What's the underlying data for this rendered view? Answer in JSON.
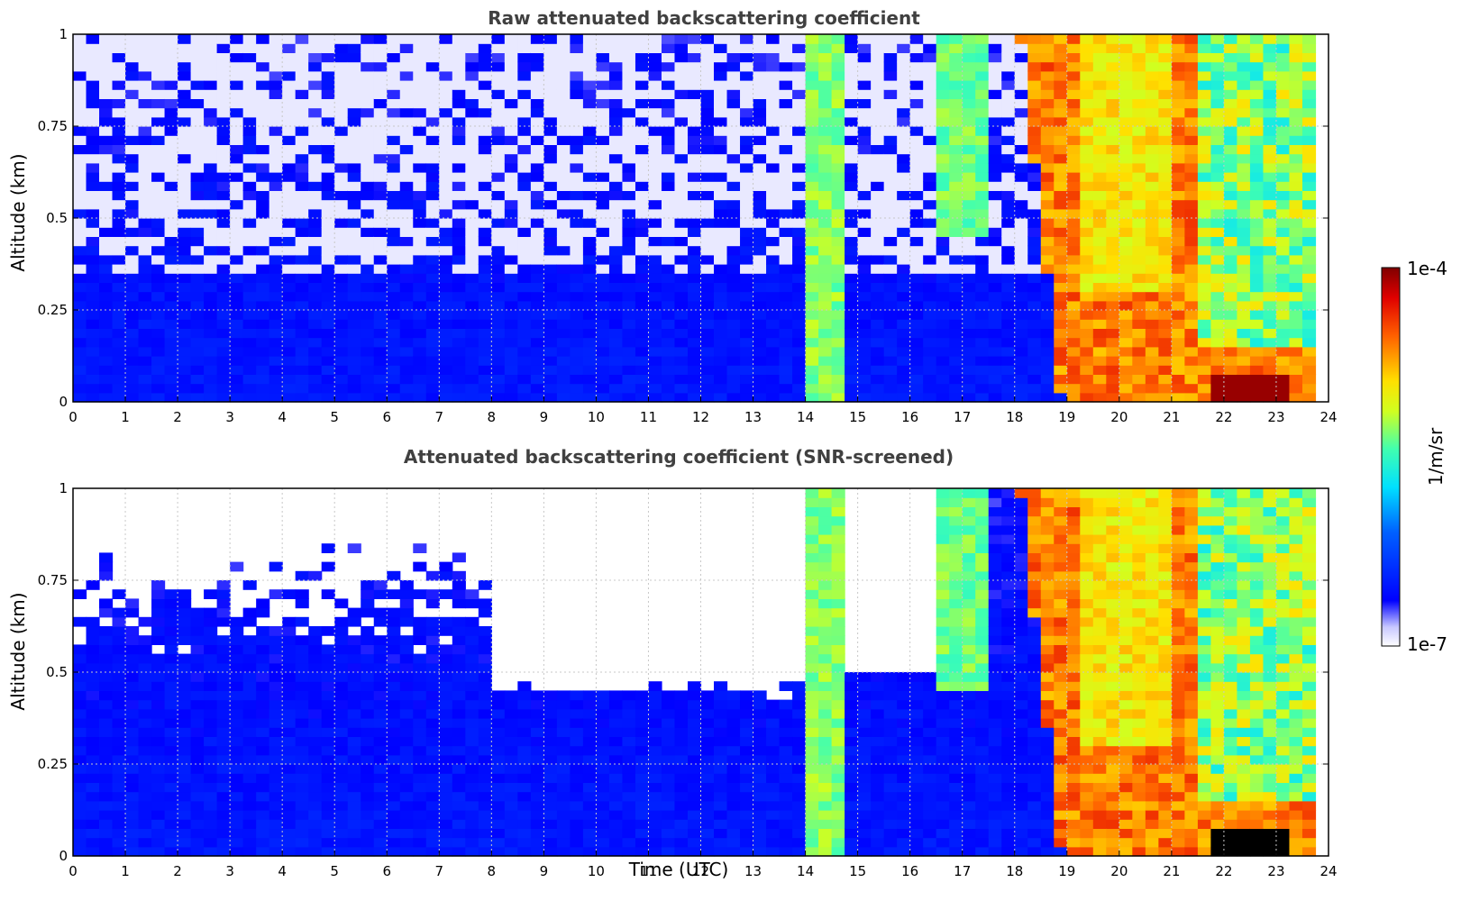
{
  "chart_data": [
    {
      "type": "heatmap",
      "title": "Raw attenuated backscattering coefficient",
      "xlabel": "",
      "ylabel": "Altitude (km)",
      "xlim": [
        0,
        24
      ],
      "ylim": [
        0,
        1
      ],
      "x_ticks": [
        "0",
        "1",
        "2",
        "3",
        "4",
        "5",
        "6",
        "7",
        "8",
        "9",
        "10",
        "11",
        "12",
        "13",
        "14",
        "15",
        "16",
        "17",
        "18",
        "19",
        "20",
        "21",
        "22",
        "23",
        "24"
      ],
      "y_ticks": [
        "0",
        "0.25",
        "0.5",
        "0.75",
        "1"
      ],
      "grid": true,
      "screened": false
    },
    {
      "type": "heatmap",
      "title": "Attenuated backscattering coefficient (SNR-screened)",
      "xlabel": "Time (UTC)",
      "ylabel": "Altitude (km)",
      "xlim": [
        0,
        24
      ],
      "ylim": [
        0,
        1
      ],
      "x_ticks": [
        "0",
        "1",
        "2",
        "3",
        "4",
        "5",
        "6",
        "7",
        "8",
        "9",
        "10",
        "11",
        "12",
        "13",
        "14",
        "15",
        "16",
        "17",
        "18",
        "19",
        "20",
        "21",
        "22",
        "23",
        "24"
      ],
      "y_ticks": [
        "0",
        "0.25",
        "0.5",
        "0.75",
        "1"
      ],
      "grid": true,
      "screened": true
    }
  ],
  "colorbar": {
    "label": "1/m/sr",
    "min_label": "1e-7",
    "max_label": "1e-4",
    "scale": "log",
    "colormap": "jet"
  },
  "colors": {
    "title": "#404040",
    "grid": "#c8c8c8"
  }
}
